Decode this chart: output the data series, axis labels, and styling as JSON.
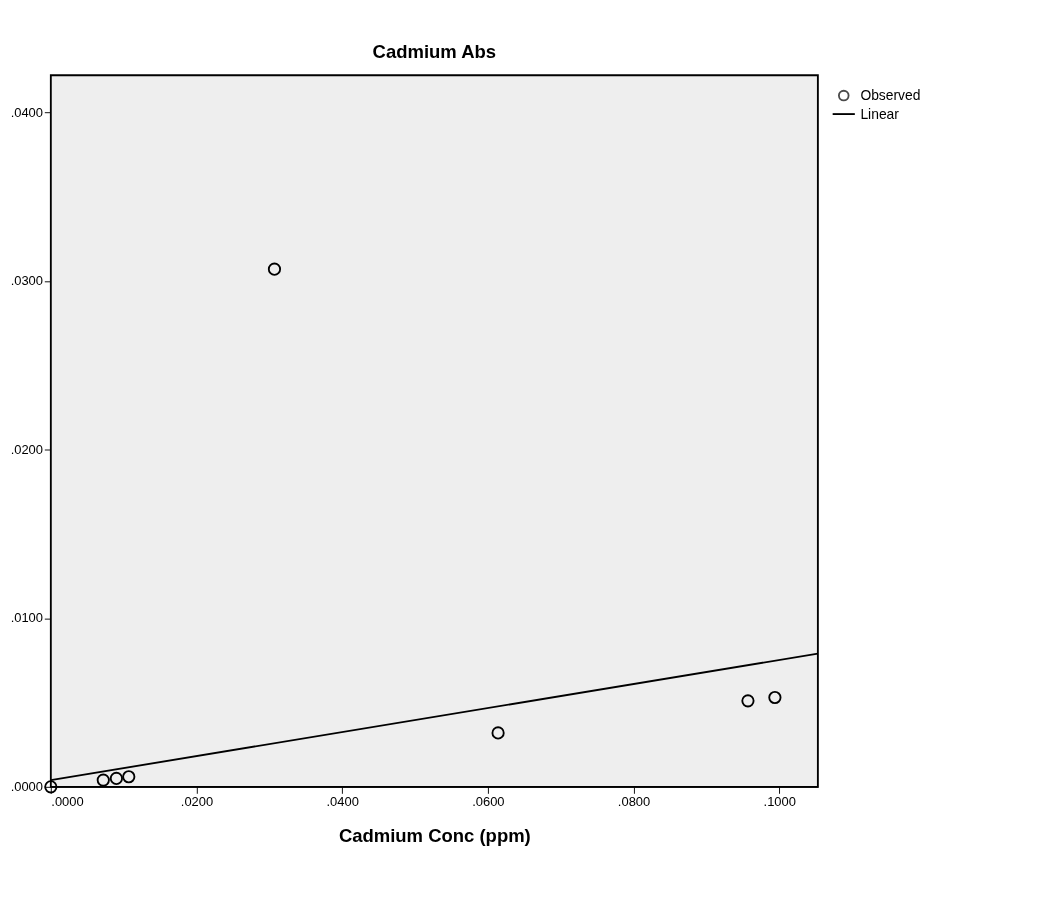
{
  "chart_data": {
    "type": "scatter",
    "title": "Cadmium Abs",
    "xlabel": "Cadmium Conc (ppm)",
    "series": [
      {
        "name": "Observed",
        "color": "#000000",
        "marker": "circle",
        "x": [
          0.0,
          0.0072,
          0.009,
          0.0107,
          0.0307,
          0.0614,
          0.0957,
          0.0994
        ],
        "values": [
          0.0,
          0.0004,
          0.0005,
          0.0006,
          0.0307,
          0.0032,
          0.0051,
          0.0053
        ]
      },
      {
        "name": "Linear",
        "type": "line",
        "color": "#000000",
        "line_style": "solid",
        "marker": "none",
        "x": [
          0.0,
          0.1053
        ],
        "values": [
          0.0004,
          0.0079
        ]
      }
    ],
    "xlim": [
      0.0,
      0.1053
    ],
    "ylim": [
      0.0,
      0.0422
    ],
    "xticks": [
      {
        "value": 0,
        "label": ".0000"
      },
      {
        "value": 0.02,
        "label": ".0200"
      },
      {
        "value": 0.04,
        "label": ".0400"
      },
      {
        "value": 0.06,
        "label": ".0600"
      },
      {
        "value": 0.08,
        "label": ".0800"
      },
      {
        "value": 0.1,
        "label": ".1000"
      }
    ],
    "yticks": [
      {
        "value": 0,
        "label": ".0000"
      },
      {
        "value": 0.01,
        "label": ".0100"
      },
      {
        "value": 0.02,
        "label": ".0200"
      },
      {
        "value": 0.03,
        "label": ".0300"
      },
      {
        "value": 0.04,
        "label": ".0400"
      }
    ],
    "legend": "top right"
  }
}
